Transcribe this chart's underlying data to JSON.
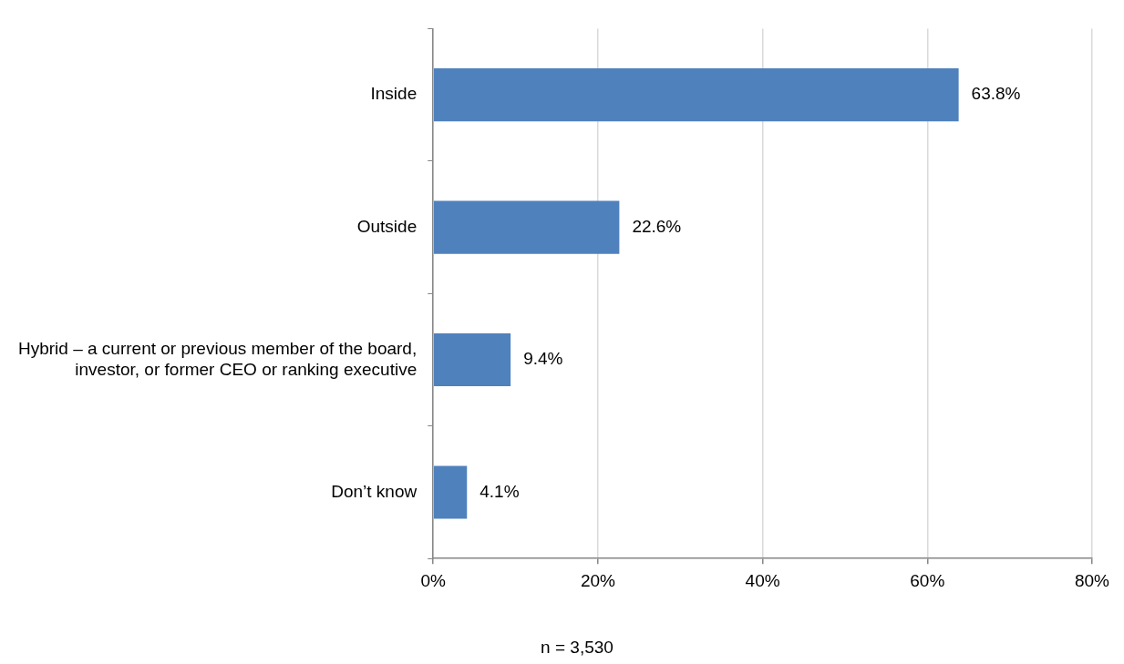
{
  "chart_data": {
    "type": "bar",
    "orientation": "horizontal",
    "categories": [
      "Inside",
      "Outside",
      "Hybrid – a current or previous member of the board, investor, or former CEO or ranking executive",
      "Don’t know"
    ],
    "values": [
      63.8,
      22.6,
      9.4,
      4.1
    ],
    "value_labels": [
      "63.8%",
      "22.6%",
      "9.4%",
      "4.1%"
    ],
    "color": "#4f81bd",
    "xlim": [
      0,
      80
    ],
    "xticks": [
      {
        "value": 0,
        "label": "0%"
      },
      {
        "value": 20,
        "label": "20%"
      },
      {
        "value": 40,
        "label": "40%"
      },
      {
        "value": 60,
        "label": "60%"
      },
      {
        "value": 80,
        "label": "80%"
      }
    ],
    "grid": "x",
    "legend": false,
    "annotations": [
      "n = 3,530"
    ]
  }
}
